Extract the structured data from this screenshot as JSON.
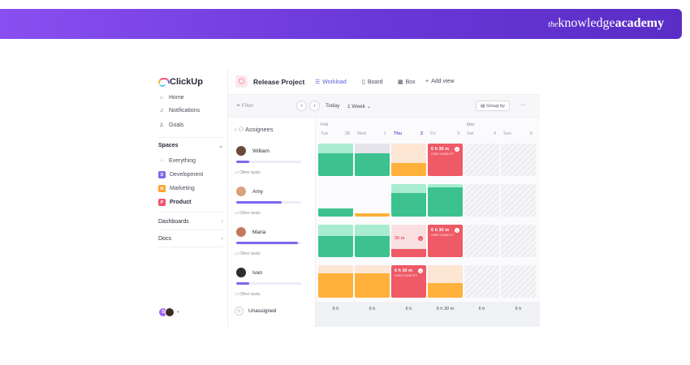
{
  "banner": {
    "brand_the": "the",
    "brand_knowledge": "knowledge",
    "brand_academy": "academy"
  },
  "sidebar": {
    "logo": "ClickUp",
    "nav": [
      {
        "label": "Home",
        "icon": "home-icon"
      },
      {
        "label": "Notifications",
        "icon": "bell-icon"
      },
      {
        "label": "Goals",
        "icon": "trophy-icon"
      }
    ],
    "spaces_label": "Spaces",
    "spaces": [
      {
        "label": "Everything",
        "badge": "",
        "color": ""
      },
      {
        "label": "Development",
        "badge": "D",
        "color": "#7b68ee"
      },
      {
        "label": "Marketing",
        "badge": "M",
        "color": "#ffa12f"
      },
      {
        "label": "Product",
        "badge": "P",
        "color": "#f0546e"
      }
    ],
    "dashboards": "Dashboards",
    "docs": "Docs",
    "avatar_initial": "S"
  },
  "topbar": {
    "project": "Release Project",
    "views": [
      "Workload",
      "Board",
      "Box"
    ],
    "add_view": "Add view"
  },
  "toolbar": {
    "filter": "Filter",
    "today": "Today",
    "range": "1 Week",
    "group_by": "Group by",
    "more": "···"
  },
  "assignees": {
    "header": "Assignees",
    "other_tasks": "Other tasks",
    "people": [
      {
        "name": "William",
        "load": 0.2,
        "color": "#6b4a3a"
      },
      {
        "name": "Amy",
        "load": 0.7,
        "color": "#d9a27a"
      },
      {
        "name": "Maria",
        "load": 0.95,
        "color": "#c47a5a"
      },
      {
        "name": "Ivan",
        "load": 0.2,
        "color": "#2d2d2d"
      }
    ],
    "unassigned": "Unassigned"
  },
  "calendar": {
    "month_start": "Feb",
    "month_end": "Mar",
    "days": [
      {
        "name": "Tue",
        "num": "28"
      },
      {
        "name": "Wed",
        "num": "1"
      },
      {
        "name": "Thu",
        "num": "2",
        "today": true
      },
      {
        "name": "Fri",
        "num": "3"
      },
      {
        "name": "Sat",
        "num": "4"
      },
      {
        "name": "Sun",
        "num": "5"
      }
    ],
    "over_text": "6 h 30 m",
    "over_text_maria": "30 m",
    "over_sub": "OVER CAPACITY",
    "footer": [
      "6 h",
      "6 h",
      "6 h",
      "6 h 30 m",
      "6 h",
      "6 h"
    ]
  },
  "colors": {
    "green": "#3dc28f",
    "green_light": "#a8ecd1",
    "orange": "#ffb13b",
    "orange_light": "#fde6d4",
    "red": "#ee5a66",
    "gray_light": "#e4e4ea",
    "accent": "#7b68ee"
  }
}
